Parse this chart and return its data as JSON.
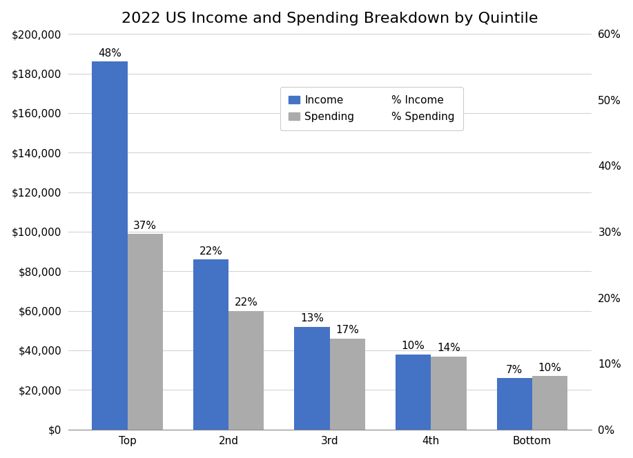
{
  "title": "2022 US Income and Spending Breakdown by Quintile",
  "categories": [
    "Top",
    "2nd",
    "3rd",
    "4th",
    "Bottom"
  ],
  "income_values": [
    186000,
    86000,
    52000,
    38000,
    26000
  ],
  "spending_values": [
    99000,
    60000,
    46000,
    37000,
    27000
  ],
  "income_pct": [
    48,
    22,
    13,
    10,
    7
  ],
  "spending_pct": [
    37,
    22,
    17,
    14,
    10
  ],
  "income_color": "#4472C4",
  "spending_color": "#ABABAB",
  "bar_width": 0.35,
  "ylim_left": [
    0,
    200000
  ],
  "ylim_right": [
    0,
    0.6
  ],
  "yticks_left": [
    0,
    20000,
    40000,
    60000,
    80000,
    100000,
    120000,
    140000,
    160000,
    180000,
    200000
  ],
  "yticks_right": [
    0,
    0.1,
    0.2,
    0.3,
    0.4,
    0.5,
    0.6
  ],
  "background_color": "#ffffff",
  "title_fontsize": 16,
  "tick_fontsize": 11,
  "label_fontsize": 11,
  "legend_fontsize": 11
}
